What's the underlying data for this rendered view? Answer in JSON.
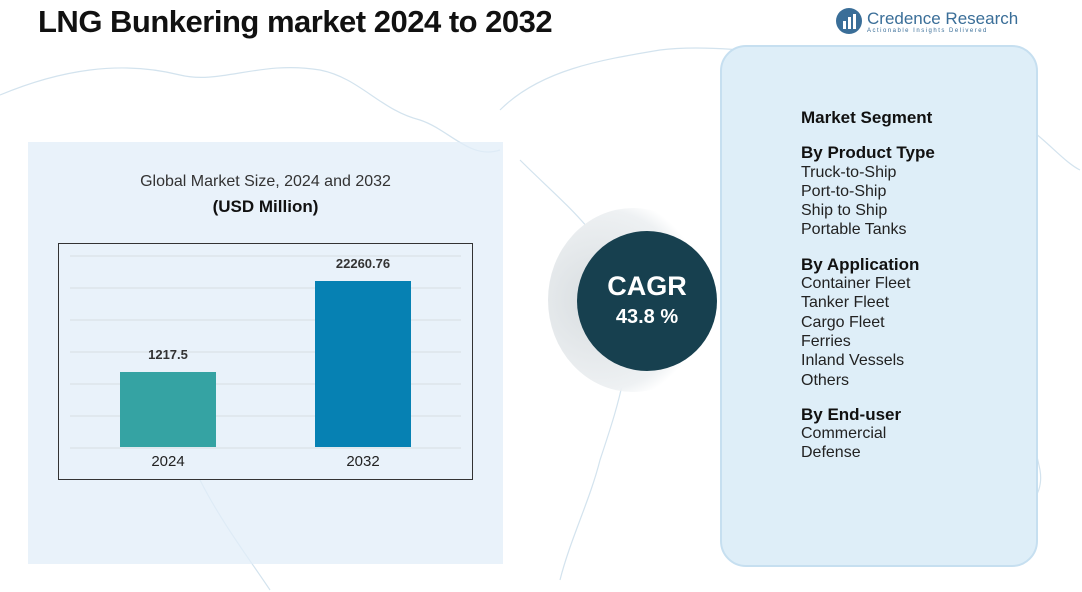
{
  "title": "LNG Bunkering market  2024  to 2032",
  "logo": {
    "name": "Credence Research",
    "tagline": "Actionable Insights Delivered"
  },
  "chart_title": "Global Market Size, 2024 and 2032",
  "chart_unit": "(USD Million)",
  "chart_data": {
    "type": "bar",
    "categories": [
      "2024",
      "2032"
    ],
    "values": [
      1217.5,
      22260.76
    ],
    "value_labels": [
      "1217.5",
      "22260.76"
    ],
    "colors": [
      "#35a3a3",
      "#0681b3"
    ],
    "grid": true,
    "title": "Global Market Size, 2024 and 2032",
    "ylabel": "(USD Million)"
  },
  "cagr": {
    "label": "CAGR",
    "value": "43.8 %"
  },
  "segments": {
    "heading": "Market Segment",
    "groups": [
      {
        "title": "By Product Type",
        "items": [
          "Truck-to-Ship",
          "Port-to-Ship",
          "Ship to Ship",
          "Portable Tanks"
        ]
      },
      {
        "title": "By Application",
        "items": [
          "Container Fleet",
          "Tanker Fleet",
          "Cargo Fleet",
          "Ferries",
          "Inland Vessels",
          "Others"
        ]
      },
      {
        "title": "By End-user",
        "items": [
          "Commercial",
          "Defense"
        ]
      }
    ]
  }
}
